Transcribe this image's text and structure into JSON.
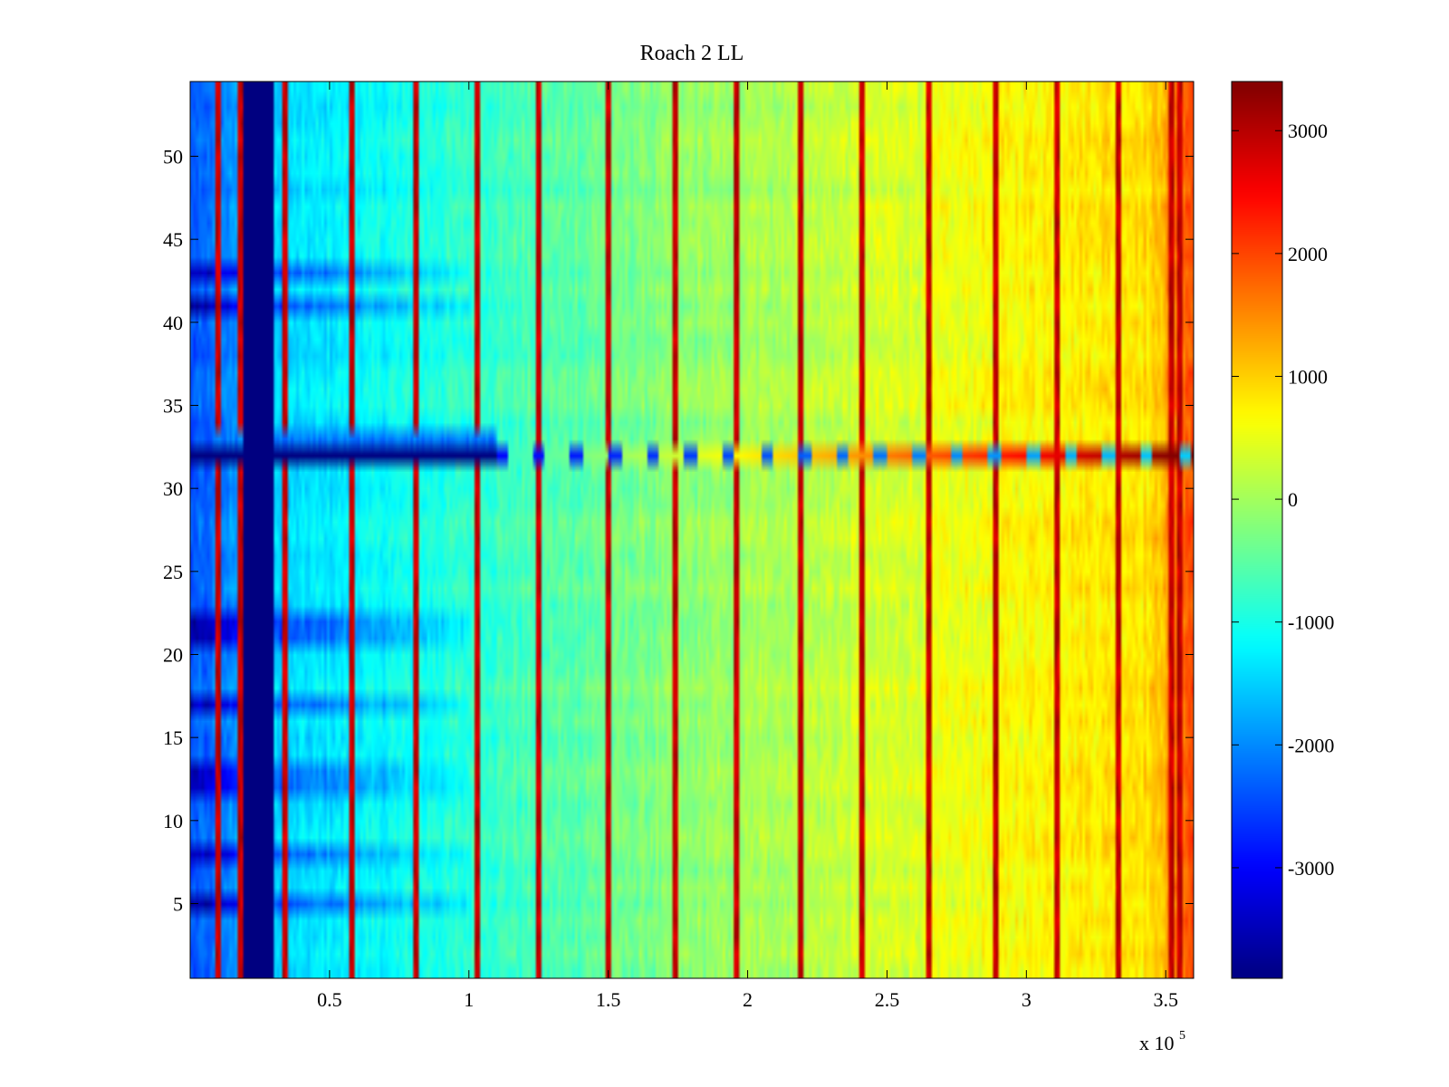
{
  "chart_data": {
    "type": "heatmap",
    "title": "Roach 2 LL",
    "x_exponent_label": "x 10",
    "x_exponent_power": "5",
    "xlim": [
      0,
      3.6
    ],
    "ylim": [
      0.5,
      54.5
    ],
    "x_ticks": [
      {
        "value": 0.5,
        "label": "0.5"
      },
      {
        "value": 1.0,
        "label": "1"
      },
      {
        "value": 1.5,
        "label": "1.5"
      },
      {
        "value": 2.0,
        "label": "2"
      },
      {
        "value": 2.5,
        "label": "2.5"
      },
      {
        "value": 3.0,
        "label": "3"
      },
      {
        "value": 3.5,
        "label": "3.5"
      }
    ],
    "y_ticks": [
      {
        "value": 5,
        "label": "5"
      },
      {
        "value": 10,
        "label": "10"
      },
      {
        "value": 15,
        "label": "15"
      },
      {
        "value": 20,
        "label": "20"
      },
      {
        "value": 25,
        "label": "25"
      },
      {
        "value": 30,
        "label": "30"
      },
      {
        "value": 35,
        "label": "35"
      },
      {
        "value": 40,
        "label": "40"
      },
      {
        "value": 45,
        "label": "45"
      },
      {
        "value": 50,
        "label": "50"
      }
    ],
    "colorbar": {
      "colormap": "jet",
      "range": [
        -3900,
        3400
      ],
      "ticks": [
        {
          "value": 3000,
          "label": "3000"
        },
        {
          "value": 2000,
          "label": "2000"
        },
        {
          "value": 1000,
          "label": "1000"
        },
        {
          "value": 0,
          "label": "0"
        },
        {
          "value": -1000,
          "label": "-1000"
        },
        {
          "value": -2000,
          "label": "-2000"
        },
        {
          "value": -3000,
          "label": "-3000"
        }
      ]
    },
    "rows": 54,
    "trend": {
      "description": "values rise roughly linearly from about -1500 near x=0.3 to about +900 near x=3.45, then jump to about 2000 at the right edge",
      "x_knots": [
        0.0,
        0.3,
        0.5,
        1.0,
        1.5,
        2.0,
        2.5,
        3.0,
        3.45,
        3.6
      ],
      "values": [
        -2400,
        -1500,
        -1300,
        -850,
        -400,
        0,
        350,
        700,
        900,
        2000
      ]
    },
    "dead_band": {
      "x_from": 0.19,
      "x_to": 0.3,
      "value": -3900
    },
    "hot_columns": [
      0.1,
      0.18,
      0.34,
      0.58,
      0.81,
      1.03,
      1.25,
      1.5,
      1.74,
      1.96,
      2.19,
      2.41,
      2.65,
      2.89,
      3.11,
      3.33,
      3.52,
      3.55
    ],
    "anomalous_row": {
      "y": 32,
      "description": "row 32 is saturated low (about -3900) for x < 1.1, then alternates between cold and very hot (about 3000) segments toward the right"
    },
    "cold_rows": [
      5,
      8,
      12,
      13,
      17,
      21,
      22,
      41,
      43
    ],
    "xlabel": "",
    "ylabel": ""
  }
}
